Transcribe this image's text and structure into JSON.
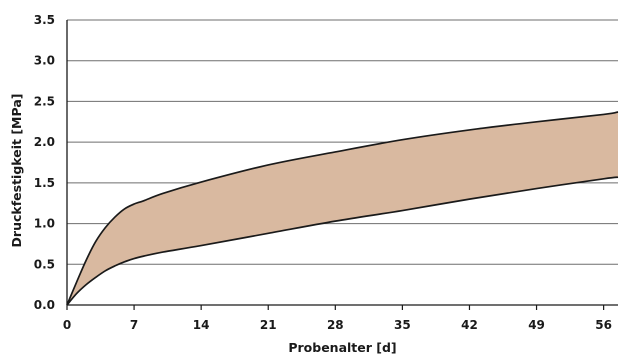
{
  "chart_data": {
    "type": "area",
    "title": "",
    "xlabel": "Probenalter [d]",
    "ylabel": "Druckfestigkeit [MPa]",
    "xlim": [
      0,
      57.5
    ],
    "ylim": [
      0,
      3.5
    ],
    "x_ticks": [
      "0",
      "7",
      "14",
      "21",
      "28",
      "35",
      "42",
      "49",
      "56"
    ],
    "y_ticks": [
      "0.0",
      "0.5",
      "1.0",
      "1.5",
      "2.0",
      "2.5",
      "3.0",
      "3.5"
    ],
    "grid": "horizontal",
    "fill_color": "#d9b9a0",
    "line_color": "#1a1a1a",
    "series": [
      {
        "x": [
          0,
          1,
          2,
          3,
          4,
          5,
          6,
          7,
          8,
          10,
          14,
          21,
          28,
          35,
          42,
          49,
          56,
          57.5
        ],
        "values": [
          0.0,
          0.28,
          0.55,
          0.78,
          0.95,
          1.08,
          1.18,
          1.24,
          1.28,
          1.37,
          1.51,
          1.72,
          1.88,
          2.03,
          2.15,
          2.25,
          2.34,
          2.37
        ]
      },
      {
        "x": [
          0,
          1,
          2,
          3,
          4,
          5,
          6,
          7,
          8,
          10,
          14,
          21,
          28,
          35,
          42,
          49,
          56,
          57.5
        ],
        "values": [
          0.0,
          0.14,
          0.25,
          0.34,
          0.42,
          0.48,
          0.53,
          0.57,
          0.6,
          0.65,
          0.73,
          0.88,
          1.03,
          1.16,
          1.3,
          1.43,
          1.55,
          1.57
        ]
      }
    ]
  }
}
